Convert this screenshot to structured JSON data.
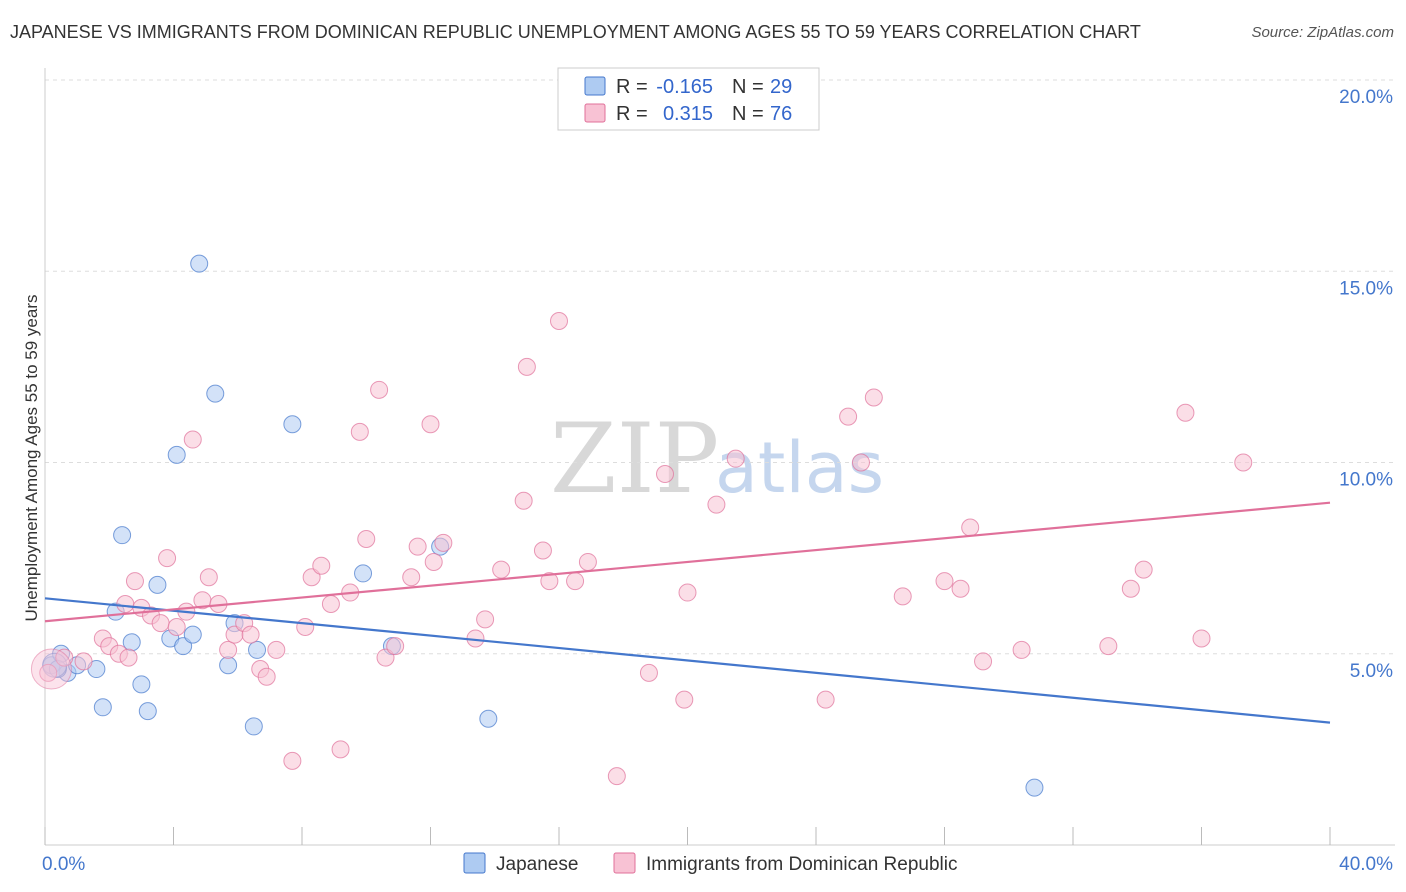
{
  "title": "JAPANESE VS IMMIGRANTS FROM DOMINICAN REPUBLIC UNEMPLOYMENT AMONG AGES 55 TO 59 YEARS CORRELATION CHART",
  "source": "Source: ZipAtlas.com",
  "watermark": {
    "zip": "ZIP",
    "atlas": "atlas"
  },
  "legend": {
    "r_label": "R =",
    "n_label": "N =",
    "rows": [
      {
        "r": "-0.165",
        "n": "29"
      },
      {
        "r": "0.315",
        "n": "76"
      }
    ]
  },
  "chart_data": {
    "type": "scatter",
    "title": "JAPANESE VS IMMIGRANTS FROM DOMINICAN REPUBLIC UNEMPLOYMENT AMONG AGES 55 TO 59 YEARS CORRELATION CHART",
    "xlabel": "",
    "ylabel": "Unemployment Among Ages 55 to 59 years",
    "xlim": [
      0,
      40
    ],
    "ylim": [
      0,
      20
    ],
    "x_tick_labels": [
      {
        "value": 0,
        "label": "0.0%"
      },
      {
        "value": 40,
        "label": "40.0%"
      }
    ],
    "y_tick_labels": [
      {
        "value": 5,
        "label": "5.0%"
      },
      {
        "value": 10,
        "label": "10.0%"
      },
      {
        "value": 15,
        "label": "15.0%"
      },
      {
        "value": 20,
        "label": "20.0%"
      }
    ],
    "grid": true,
    "series": [
      {
        "name": "Japanese",
        "color": "#4477cc",
        "fill": "#aecbf2",
        "r": -0.165,
        "n": 29,
        "trend": {
          "x": [
            0,
            40
          ],
          "y": [
            6.45,
            3.2
          ]
        },
        "points": [
          [
            0.2,
            4.7
          ],
          [
            0.5,
            5.0
          ],
          [
            0.7,
            4.5
          ],
          [
            1.0,
            4.7
          ],
          [
            1.6,
            4.6
          ],
          [
            1.8,
            3.6
          ],
          [
            2.2,
            6.1
          ],
          [
            2.4,
            8.1
          ],
          [
            2.7,
            5.3
          ],
          [
            3.0,
            4.2
          ],
          [
            3.2,
            3.5
          ],
          [
            3.5,
            6.8
          ],
          [
            3.9,
            5.4
          ],
          [
            4.1,
            10.2
          ],
          [
            4.3,
            5.2
          ],
          [
            4.6,
            5.5
          ],
          [
            4.8,
            15.2
          ],
          [
            5.3,
            11.8
          ],
          [
            5.7,
            4.7
          ],
          [
            5.9,
            5.8
          ],
          [
            6.6,
            5.1
          ],
          [
            6.5,
            3.1
          ],
          [
            7.7,
            11.0
          ],
          [
            9.9,
            7.1
          ],
          [
            10.8,
            5.2
          ],
          [
            12.3,
            7.8
          ],
          [
            13.8,
            3.3
          ],
          [
            30.8,
            1.5
          ],
          [
            0.4,
            4.6
          ]
        ]
      },
      {
        "name": "Immigrants from Dominican Republic",
        "color": "#e0709a",
        "fill": "#f8c2d4",
        "r": 0.315,
        "n": 76,
        "trend": {
          "x": [
            0,
            40
          ],
          "y": [
            5.85,
            8.95
          ]
        },
        "points": [
          [
            0.1,
            4.5
          ],
          [
            0.6,
            4.9
          ],
          [
            1.2,
            4.8
          ],
          [
            1.8,
            5.4
          ],
          [
            2.0,
            5.2
          ],
          [
            2.3,
            5.0
          ],
          [
            2.5,
            6.3
          ],
          [
            2.6,
            4.9
          ],
          [
            2.8,
            6.9
          ],
          [
            3.0,
            6.2
          ],
          [
            3.3,
            6.0
          ],
          [
            3.6,
            5.8
          ],
          [
            3.8,
            7.5
          ],
          [
            4.1,
            5.7
          ],
          [
            4.4,
            6.1
          ],
          [
            4.6,
            10.6
          ],
          [
            4.9,
            6.4
          ],
          [
            5.1,
            7.0
          ],
          [
            5.4,
            6.3
          ],
          [
            5.7,
            5.1
          ],
          [
            5.9,
            5.5
          ],
          [
            6.2,
            5.8
          ],
          [
            6.4,
            5.5
          ],
          [
            6.7,
            4.6
          ],
          [
            6.9,
            4.4
          ],
          [
            7.2,
            5.1
          ],
          [
            7.7,
            2.2
          ],
          [
            8.1,
            5.7
          ],
          [
            8.3,
            7.0
          ],
          [
            8.6,
            7.3
          ],
          [
            8.9,
            6.3
          ],
          [
            9.2,
            2.5
          ],
          [
            9.5,
            6.6
          ],
          [
            9.8,
            10.8
          ],
          [
            10.0,
            8.0
          ],
          [
            10.4,
            11.9
          ],
          [
            10.6,
            4.9
          ],
          [
            10.9,
            5.2
          ],
          [
            11.4,
            7.0
          ],
          [
            11.6,
            7.8
          ],
          [
            12.0,
            11.0
          ],
          [
            12.1,
            7.4
          ],
          [
            12.4,
            7.9
          ],
          [
            13.4,
            5.4
          ],
          [
            13.7,
            5.9
          ],
          [
            14.2,
            7.2
          ],
          [
            14.9,
            9.0
          ],
          [
            15.0,
            12.5
          ],
          [
            15.5,
            7.7
          ],
          [
            15.7,
            6.9
          ],
          [
            16.0,
            13.7
          ],
          [
            16.5,
            6.9
          ],
          [
            16.9,
            7.4
          ],
          [
            17.8,
            1.8
          ],
          [
            18.8,
            4.5
          ],
          [
            19.3,
            9.7
          ],
          [
            19.9,
            3.8
          ],
          [
            20.9,
            8.9
          ],
          [
            21.5,
            10.1
          ],
          [
            24.3,
            3.8
          ],
          [
            25.0,
            11.2
          ],
          [
            25.4,
            10.0
          ],
          [
            25.8,
            11.7
          ],
          [
            26.7,
            6.5
          ],
          [
            28.0,
            6.9
          ],
          [
            28.5,
            6.7
          ],
          [
            28.8,
            8.3
          ],
          [
            29.2,
            4.8
          ],
          [
            30.4,
            5.1
          ],
          [
            33.1,
            5.2
          ],
          [
            33.8,
            6.7
          ],
          [
            34.2,
            7.2
          ],
          [
            35.5,
            11.3
          ],
          [
            36.0,
            5.4
          ],
          [
            37.3,
            10.0
          ],
          [
            20.0,
            6.6
          ]
        ]
      }
    ]
  }
}
